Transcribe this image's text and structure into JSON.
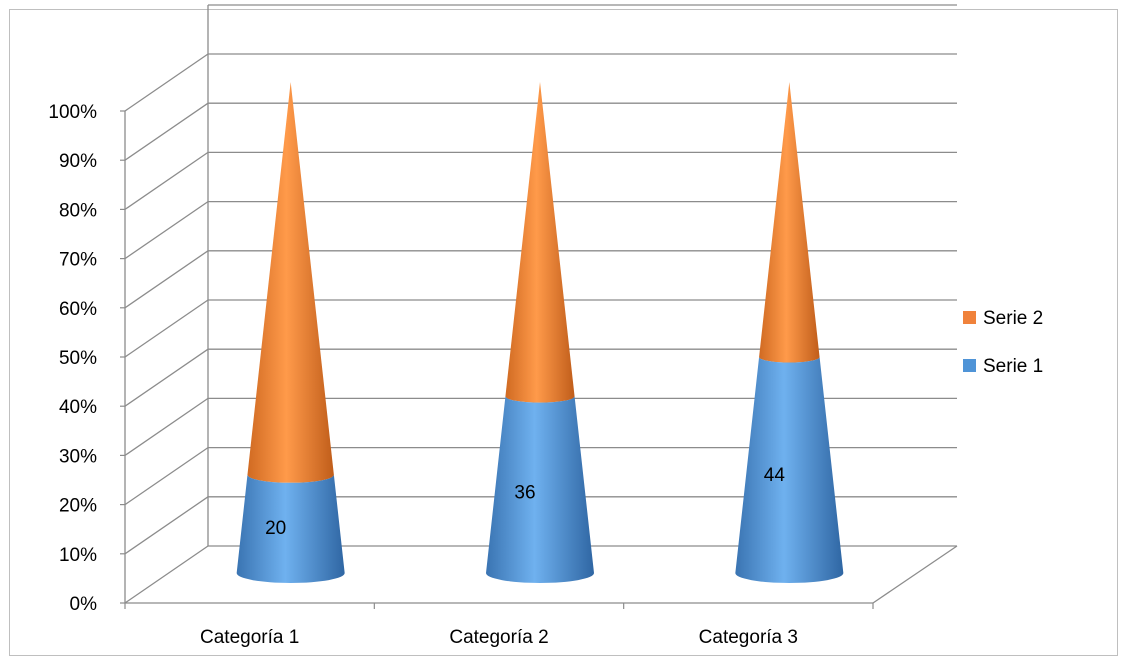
{
  "chart_data": {
    "type": "bar",
    "subtype": "3d-cone-100%-stacked",
    "categories": [
      "Categoría 1",
      "Categoría 2",
      "Categoría 3"
    ],
    "series": [
      {
        "name": "Serie 1",
        "values": [
          20,
          36,
          44
        ],
        "color": "#4f94d7"
      },
      {
        "name": "Serie 2",
        "values": [
          80,
          64,
          56
        ],
        "color": "#f0823b"
      }
    ],
    "data_labels": {
      "Serie 1": [
        "20",
        "36",
        "44"
      ]
    },
    "y_ticks": [
      "0%",
      "10%",
      "20%",
      "30%",
      "40%",
      "50%",
      "60%",
      "70%",
      "80%",
      "90%",
      "100%"
    ],
    "ylim": [
      0,
      100
    ],
    "grid": true,
    "legend": "right"
  }
}
